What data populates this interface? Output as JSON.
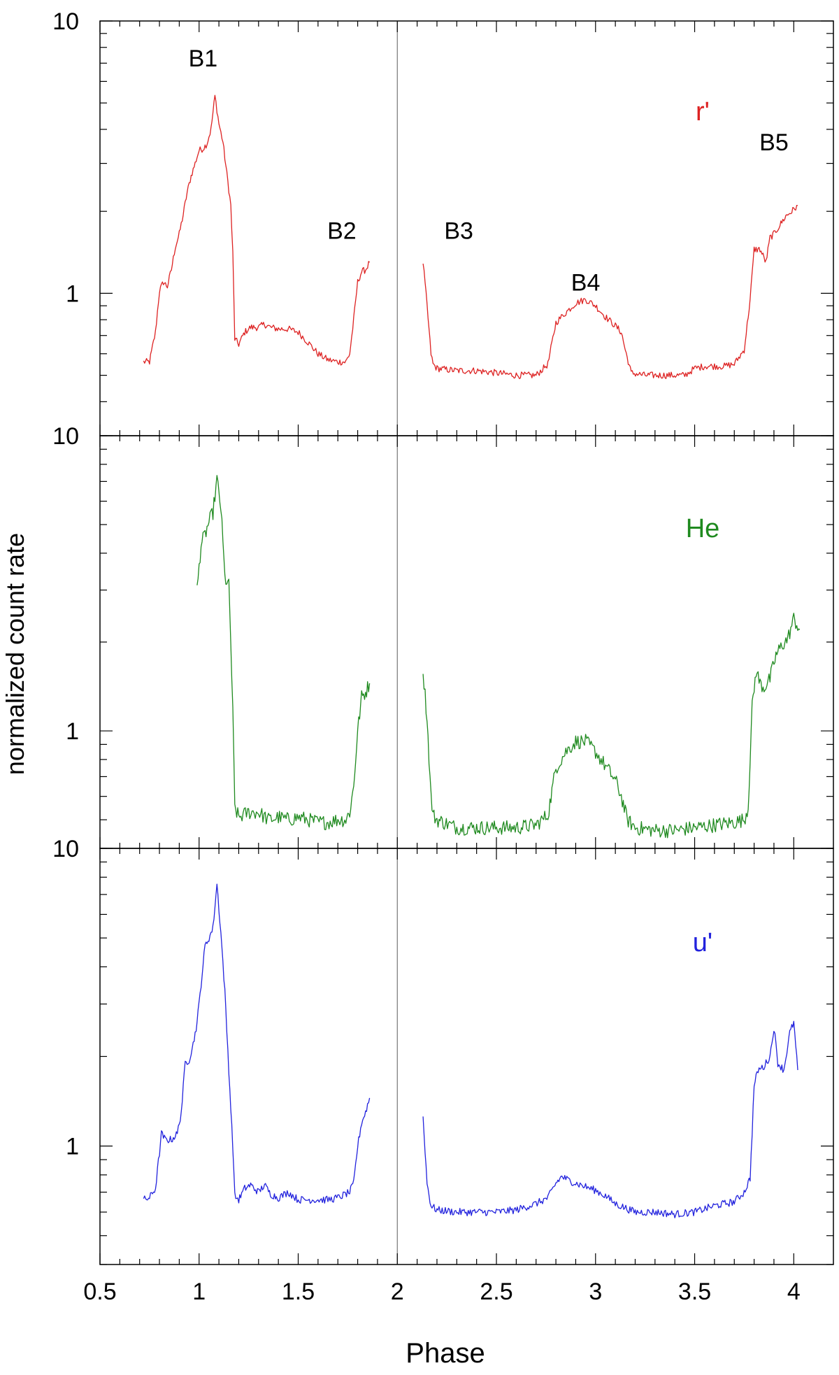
{
  "chart_data": {
    "type": "line",
    "xlabel": "Phase",
    "ylabel": "normalized count rate",
    "x_ticks": [
      "0.5",
      "1",
      "1.5",
      "2",
      "2.5",
      "3",
      "3.5",
      "4"
    ],
    "xlim": [
      0.5,
      4.2
    ],
    "y_scale": "log",
    "vertical_line_x": 2.0,
    "panels": [
      {
        "label": "r'",
        "color": "#dd2222",
        "ylim": [
          0.3,
          10
        ],
        "y_tick_labels": [
          "10",
          "1"
        ],
        "annotations": [
          {
            "text": "B1",
            "x": 1.02,
            "y": 7.3
          },
          {
            "text": "B2",
            "x": 1.72,
            "y": 1.7
          },
          {
            "text": "B3",
            "x": 2.31,
            "y": 1.7
          },
          {
            "text": "B4",
            "x": 2.95,
            "y": 1.1
          },
          {
            "text": "B5",
            "x": 3.9,
            "y": 3.6
          }
        ],
        "series": [
          {
            "x": [
              0.72,
              0.75,
              0.78,
              0.8,
              0.82,
              0.84,
              0.86,
              0.88,
              0.9,
              0.92,
              0.94,
              0.96,
              0.98,
              1.0,
              1.02,
              1.04,
              1.06,
              1.08,
              1.1,
              1.12,
              1.14,
              1.16,
              1.17,
              1.18,
              1.2,
              1.23,
              1.26,
              1.3,
              1.33,
              1.36,
              1.4,
              1.45,
              1.5,
              1.55,
              1.6,
              1.65,
              1.7,
              1.74,
              1.76,
              1.78,
              1.8,
              1.82,
              1.84,
              1.86
            ],
            "y": [
              0.56,
              0.56,
              0.72,
              1.02,
              1.1,
              1.06,
              1.22,
              1.48,
              1.65,
              1.95,
              2.35,
              2.7,
              3.0,
              3.35,
              3.4,
              3.55,
              4.0,
              5.3,
              4.2,
              3.6,
              2.75,
              2.1,
              1.4,
              0.68,
              0.65,
              0.72,
              0.75,
              0.75,
              0.77,
              0.75,
              0.74,
              0.74,
              0.72,
              0.66,
              0.6,
              0.57,
              0.56,
              0.56,
              0.6,
              0.8,
              1.1,
              1.2,
              1.22,
              1.3
            ]
          },
          {
            "x": [
              2.13,
              2.15,
              2.17,
              2.18,
              2.2,
              2.3,
              2.4,
              2.5,
              2.6,
              2.7,
              2.76,
              2.8,
              2.85,
              2.9,
              2.95,
              3.0,
              3.05,
              3.1,
              3.13,
              3.15,
              3.18,
              3.25,
              3.35,
              3.45,
              3.5,
              3.55,
              3.6,
              3.65,
              3.7,
              3.75,
              3.78,
              3.8,
              3.83,
              3.86,
              3.88,
              3.9,
              3.93,
              3.96,
              3.99,
              4.02
            ],
            "y": [
              1.3,
              0.9,
              0.6,
              0.55,
              0.53,
              0.52,
              0.52,
              0.51,
              0.5,
              0.5,
              0.55,
              0.78,
              0.85,
              0.92,
              0.95,
              0.9,
              0.82,
              0.76,
              0.72,
              0.62,
              0.51,
              0.5,
              0.5,
              0.5,
              0.53,
              0.54,
              0.54,
              0.54,
              0.55,
              0.62,
              0.95,
              1.45,
              1.45,
              1.3,
              1.6,
              1.65,
              1.78,
              1.92,
              2.0,
              2.1
            ]
          }
        ]
      },
      {
        "label": "He",
        "color": "#1f8a1f",
        "ylim": [
          0.4,
          10
        ],
        "y_tick_labels": [
          "10",
          "1"
        ],
        "annotations": [],
        "series": [
          {
            "x": [
              0.99,
              1.01,
              1.03,
              1.05,
              1.07,
              1.09,
              1.11,
              1.13,
              1.15,
              1.16,
              1.17,
              1.18,
              1.2,
              1.25,
              1.3,
              1.35,
              1.4,
              1.45,
              1.5,
              1.55,
              1.6,
              1.65,
              1.7,
              1.74,
              1.76,
              1.78,
              1.8,
              1.82,
              1.84,
              1.86
            ],
            "y": [
              3.0,
              4.3,
              4.6,
              5.1,
              5.5,
              7.1,
              5.7,
              3.3,
              3.1,
              2.0,
              1.15,
              0.55,
              0.51,
              0.53,
              0.53,
              0.5,
              0.51,
              0.5,
              0.51,
              0.5,
              0.49,
              0.49,
              0.5,
              0.5,
              0.53,
              0.65,
              1.0,
              1.3,
              1.35,
              1.45
            ]
          },
          {
            "x": [
              2.13,
              2.15,
              2.17,
              2.18,
              2.2,
              2.3,
              2.4,
              2.5,
              2.6,
              2.7,
              2.76,
              2.8,
              2.85,
              2.9,
              2.95,
              3.0,
              3.05,
              3.1,
              3.13,
              3.16,
              3.2,
              3.3,
              3.4,
              3.5,
              3.6,
              3.7,
              3.75,
              3.77,
              3.79,
              3.81,
              3.83,
              3.85,
              3.88,
              3.91,
              3.94,
              3.97,
              4.0,
              4.03
            ],
            "y": [
              1.6,
              1.1,
              0.6,
              0.52,
              0.5,
              0.47,
              0.47,
              0.47,
              0.47,
              0.48,
              0.52,
              0.75,
              0.85,
              0.92,
              0.92,
              0.85,
              0.76,
              0.68,
              0.6,
              0.5,
              0.47,
              0.46,
              0.46,
              0.47,
              0.48,
              0.49,
              0.5,
              0.55,
              1.2,
              1.6,
              1.45,
              1.4,
              1.5,
              1.8,
              1.95,
              2.05,
              2.4,
              2.2
            ]
          }
        ]
      },
      {
        "label": "u'",
        "color": "#2222dd",
        "ylim": [
          0.4,
          10
        ],
        "y_tick_labels": [
          "10",
          "1"
        ],
        "annotations": [],
        "series": [
          {
            "x": [
              0.72,
              0.75,
              0.78,
              0.8,
              0.81,
              0.83,
              0.86,
              0.89,
              0.91,
              0.93,
              0.95,
              0.97,
              0.99,
              1.01,
              1.03,
              1.05,
              1.07,
              1.09,
              1.11,
              1.13,
              1.15,
              1.17,
              1.18,
              1.2,
              1.23,
              1.26,
              1.3,
              1.33,
              1.36,
              1.4,
              1.45,
              1.5,
              1.55,
              1.6,
              1.65,
              1.7,
              1.76,
              1.78,
              1.8,
              1.82,
              1.84,
              1.86
            ],
            "y": [
              0.66,
              0.67,
              0.72,
              0.95,
              1.1,
              1.05,
              1.05,
              1.1,
              1.3,
              1.9,
              1.95,
              2.2,
              2.6,
              3.5,
              4.7,
              5.0,
              5.4,
              7.6,
              5.2,
              3.3,
              1.8,
              1.0,
              0.68,
              0.66,
              0.72,
              0.74,
              0.7,
              0.74,
              0.69,
              0.67,
              0.7,
              0.66,
              0.66,
              0.66,
              0.66,
              0.67,
              0.7,
              0.75,
              1.0,
              1.2,
              1.3,
              1.45
            ]
          },
          {
            "x": [
              2.13,
              2.15,
              2.17,
              2.2,
              2.3,
              2.4,
              2.5,
              2.6,
              2.7,
              2.76,
              2.8,
              2.83,
              2.86,
              2.9,
              2.95,
              3.0,
              3.05,
              3.1,
              3.2,
              3.3,
              3.4,
              3.5,
              3.6,
              3.7,
              3.75,
              3.78,
              3.8,
              3.82,
              3.85,
              3.88,
              3.9,
              3.92,
              3.95,
              3.98,
              4.0,
              4.02
            ],
            "y": [
              1.25,
              0.75,
              0.63,
              0.61,
              0.6,
              0.6,
              0.6,
              0.61,
              0.64,
              0.67,
              0.75,
              0.79,
              0.77,
              0.75,
              0.73,
              0.71,
              0.68,
              0.64,
              0.6,
              0.6,
              0.59,
              0.6,
              0.63,
              0.65,
              0.7,
              0.78,
              1.6,
              1.8,
              1.85,
              2.0,
              2.5,
              1.9,
              1.8,
              2.4,
              2.6,
              1.8
            ]
          }
        ]
      }
    ]
  }
}
